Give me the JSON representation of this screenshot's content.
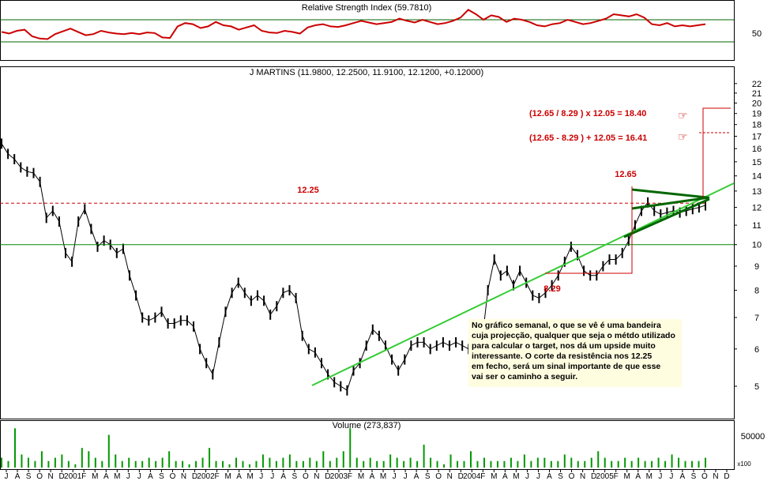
{
  "chart_data": [
    {
      "type": "line",
      "title": "Relative Strength Index (59.7810)",
      "ylim": [
        0,
        100
      ],
      "reference_lines": [
        30,
        70
      ],
      "y_tick_labels": [
        "50"
      ],
      "line_color": "#cc0000",
      "series": [
        {
          "name": "RSI",
          "values": [
            48,
            45,
            50,
            52,
            40,
            36,
            35,
            44,
            49,
            54,
            48,
            42,
            44,
            50,
            47,
            45,
            44,
            46,
            44,
            47,
            46,
            38,
            37,
            58,
            64,
            62,
            55,
            58,
            66,
            60,
            58,
            52,
            56,
            60,
            50,
            47,
            46,
            50,
            48,
            45,
            56,
            60,
            62,
            58,
            57,
            60,
            64,
            68,
            65,
            62,
            64,
            66,
            72,
            68,
            65,
            70,
            66,
            62,
            64,
            68,
            74,
            88,
            80,
            70,
            78,
            75,
            66,
            72,
            70,
            66,
            60,
            58,
            62,
            64,
            70,
            66,
            62,
            64,
            68,
            72,
            80,
            78,
            76,
            80,
            74,
            62,
            60,
            64,
            58,
            60,
            58,
            60,
            62
          ]
        }
      ]
    },
    {
      "type": "line",
      "title": "J MARTINS (11.9800, 12.2500, 11.9100, 12.1200, +0.12000)",
      "scale": "log",
      "ylim": [
        4.3,
        22.5
      ],
      "y_ticks": [
        5,
        6,
        7,
        8,
        9,
        10,
        11,
        12,
        13,
        14,
        15,
        16,
        17,
        18,
        19,
        20,
        21,
        22
      ],
      "price_color": "#000000",
      "trend_color": "#33cc33",
      "level_color": "#cc0000",
      "x_tick_labels": [
        "J",
        "A",
        "S",
        "O",
        "N",
        "D",
        "2001",
        "F",
        "M",
        "A",
        "M",
        "J",
        "J",
        "A",
        "S",
        "O",
        "N",
        "D",
        "2002",
        "F",
        "M",
        "A",
        "M",
        "J",
        "J",
        "A",
        "S",
        "O",
        "N",
        "D",
        "2003",
        "F",
        "M",
        "A",
        "M",
        "J",
        "J",
        "A",
        "S",
        "O",
        "N",
        "D",
        "2004",
        "F",
        "M",
        "A",
        "M",
        "J",
        "J",
        "A",
        "S",
        "O",
        "N",
        "D",
        "2005",
        "F",
        "M",
        "A",
        "M",
        "J",
        "J",
        "A",
        "S",
        "O",
        "N",
        "D"
      ],
      "series": [
        {
          "name": "Price",
          "values": [
            16.4,
            15.6,
            15.2,
            14.6,
            14.3,
            14.2,
            13.6,
            11.4,
            11.8,
            11.2,
            9.6,
            9.2,
            11.2,
            11.9,
            10.8,
            9.9,
            10.2,
            10.0,
            9.6,
            9.8,
            8.6,
            7.8,
            7.0,
            6.9,
            7.0,
            7.2,
            6.8,
            6.8,
            6.9,
            6.9,
            6.7,
            6.0,
            5.6,
            5.3,
            6.2,
            7.2,
            7.9,
            8.3,
            7.9,
            7.6,
            7.8,
            7.6,
            7.1,
            7.4,
            7.9,
            8.0,
            7.7,
            6.4,
            6.0,
            5.9,
            5.6,
            5.3,
            5.1,
            5.0,
            4.9,
            5.4,
            5.6,
            6.1,
            6.6,
            6.4,
            6.1,
            5.7,
            5.4,
            5.7,
            6.1,
            6.2,
            6.2,
            6.0,
            6.1,
            6.2,
            6.1,
            6.2,
            6.1,
            6.0,
            5.9,
            6.1,
            8.0,
            9.3,
            8.6,
            8.8,
            8.2,
            8.8,
            8.3,
            7.8,
            7.7,
            7.9,
            8.2,
            8.6,
            9.2,
            9.9,
            9.5,
            8.8,
            8.6,
            8.6,
            9.0,
            9.3,
            9.3,
            9.6,
            10.2,
            11.0,
            11.8,
            12.3,
            11.8,
            11.6,
            11.7,
            11.8,
            11.7,
            11.8,
            11.9,
            12.0,
            12.12
          ]
        }
      ],
      "levels": [
        {
          "label": "12.25",
          "value": 12.25
        },
        {
          "label": "",
          "value": 10.0
        }
      ],
      "annotations": {
        "high": "12.65",
        "low": "8.29",
        "calc_mult": "(12.65 / 8.29 ) x 12.05 = 18.40",
        "calc_add": "(12.65 - 8.29 ) + 12.05 = 16.41"
      }
    },
    {
      "type": "bar",
      "title": "Volume (273,837)",
      "y_tick_labels": [
        "50000"
      ],
      "scale_label": "x100",
      "bar_color": "#009900",
      "values": [
        3,
        2,
        12,
        4,
        3,
        2,
        5,
        2,
        3,
        4,
        2,
        1,
        6,
        5,
        3,
        2,
        10,
        4,
        2,
        3,
        2,
        2,
        3,
        2,
        3,
        5,
        2,
        2,
        1,
        2,
        3,
        6,
        2,
        2,
        1,
        3,
        2,
        1,
        2,
        4,
        3,
        2,
        3,
        4,
        2,
        2,
        3,
        2,
        5,
        2,
        3,
        5,
        12,
        3,
        2,
        3,
        2,
        2,
        4,
        3,
        2,
        3,
        2,
        7,
        3,
        2,
        1,
        4,
        2,
        2,
        5,
        2,
        3,
        2,
        2,
        2,
        3,
        2,
        4,
        2,
        3,
        3,
        2,
        2,
        4,
        3,
        2,
        2,
        3,
        5,
        3,
        2,
        2,
        3,
        2,
        3,
        2,
        2,
        3,
        2,
        4,
        3,
        2,
        2,
        2,
        3
      ]
    }
  ],
  "note": {
    "lines": [
      "No gráfico semanal, o que se vê é uma bandeira",
      "cuja projecção, qualquer que seja o métdo utilizado",
      "para  calcular o target, nos dá um upside muito",
      "interessante. O corte da resistência nos 12.25",
      "em fecho, será um sinal importante de que esse",
      "vai ser o caminho a seguir."
    ]
  }
}
